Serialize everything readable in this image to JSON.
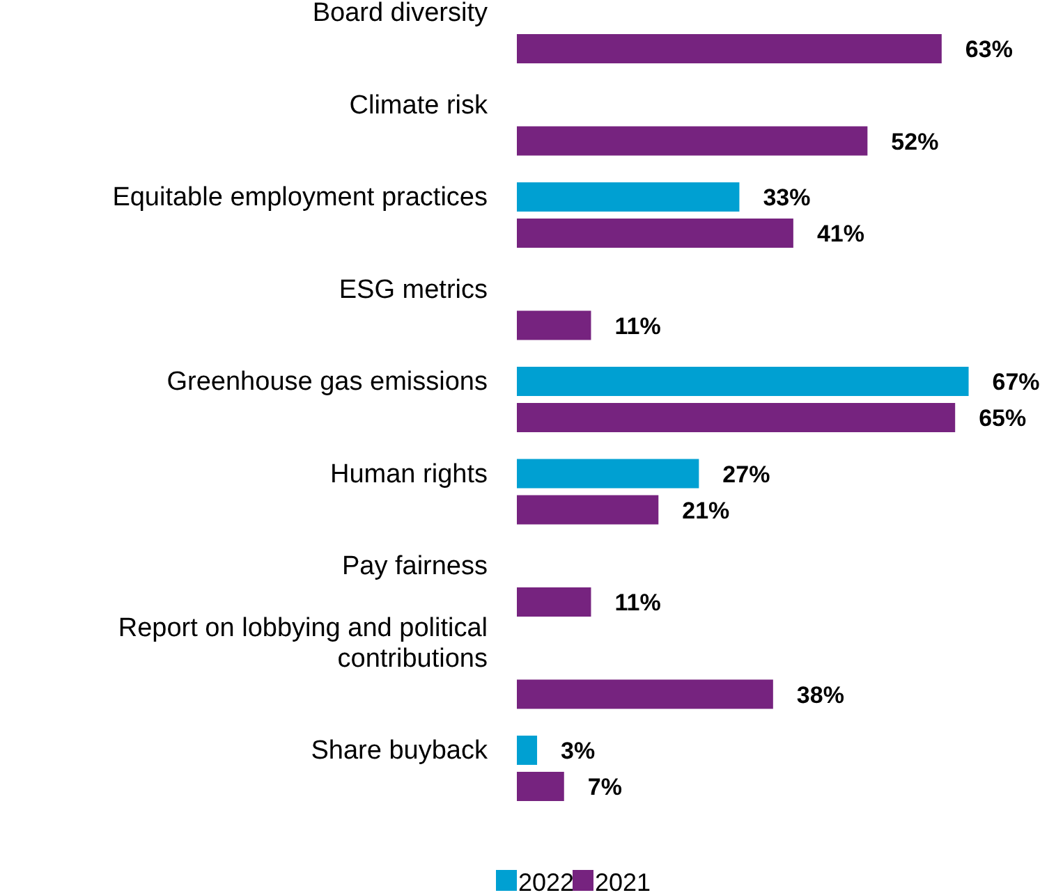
{
  "chart_data": {
    "type": "bar",
    "orientation": "horizontal",
    "legend": "bottom",
    "categories": [
      "Board diversity",
      "Climate risk",
      "Equitable employment practices",
      "ESG metrics",
      "Greenhouse gas emissions",
      "Human rights",
      "Pay fairness",
      "Report on lobbying and political contributions",
      "Share buyback"
    ],
    "series": [
      {
        "name": "2022",
        "color": "#00a0d2",
        "values": [
          null,
          null,
          33,
          null,
          67,
          27,
          null,
          null,
          3
        ],
        "value_labels": [
          null,
          null,
          "33%",
          null,
          "67%",
          "27%",
          null,
          null,
          "3%"
        ]
      },
      {
        "name": "2021",
        "color": "#76237f",
        "values": [
          63,
          52,
          41,
          11,
          65,
          21,
          11,
          38,
          7
        ],
        "value_labels": [
          "63%",
          "52%",
          "41%",
          "11%",
          "65%",
          "21%",
          "11%",
          "38%",
          "7%"
        ]
      }
    ]
  }
}
